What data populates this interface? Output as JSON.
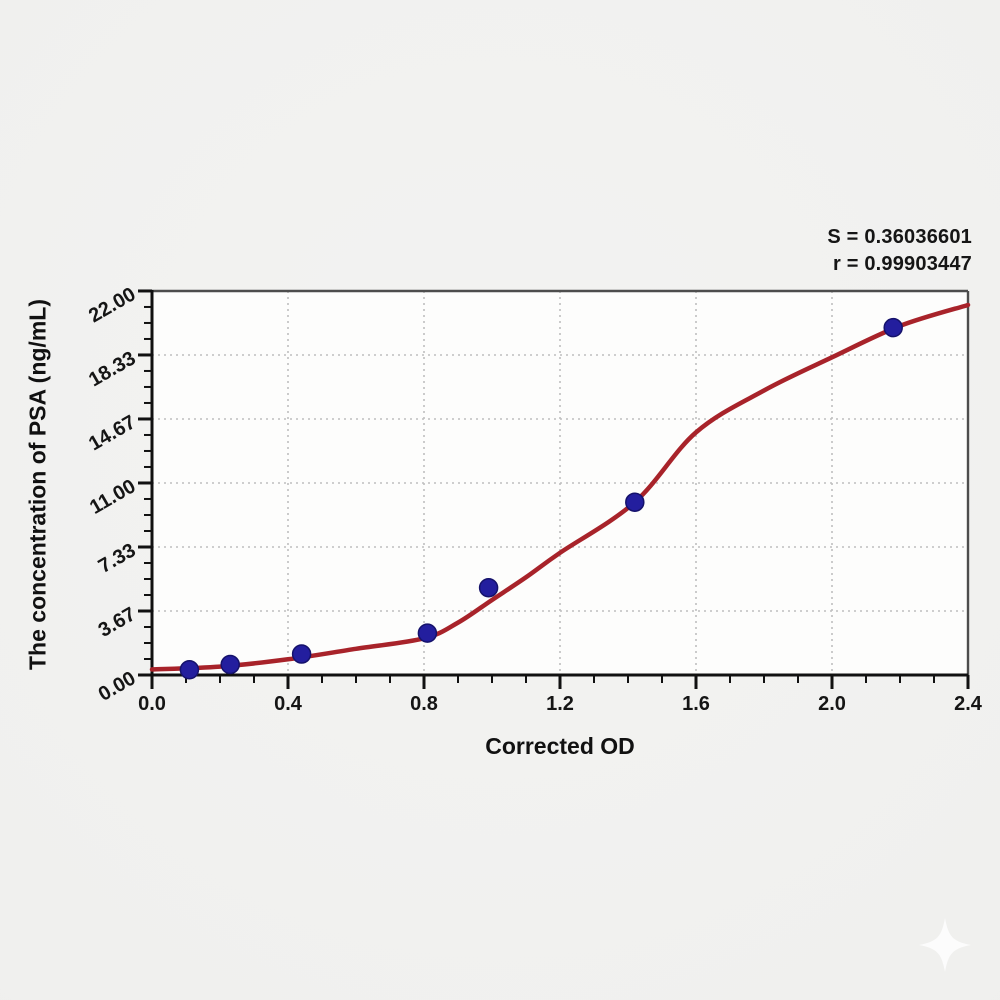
{
  "annotation": {
    "s_line": "S = 0.36036601",
    "r_line": "r = 0.99903447"
  },
  "chart_data": {
    "type": "scatter",
    "title": "",
    "xlabel": "Corrected OD",
    "ylabel": "The concentration of PSA (ng/mL)",
    "xlim": [
      0,
      2.4
    ],
    "ylim": [
      0,
      22
    ],
    "x_ticks": {
      "values": [
        0,
        0.4,
        0.8,
        1.2,
        1.6,
        2.0,
        2.4
      ],
      "labels": [
        "0.0",
        "0.4",
        "0.8",
        "1.2",
        "1.6",
        "2.0",
        "2.4"
      ]
    },
    "y_ticks": {
      "values": [
        0,
        3.667,
        7.333,
        11,
        14.667,
        18.333,
        22
      ],
      "labels": [
        "0.00",
        "3.67",
        "7.33",
        "11.00",
        "14.67",
        "18.33",
        "22.00"
      ]
    },
    "minor_ticks_between_majors": 3,
    "grid": "dotted major gridlines, on",
    "legend": "none",
    "points": [
      {
        "x": 0.11,
        "y": 0.3
      },
      {
        "x": 0.23,
        "y": 0.6
      },
      {
        "x": 0.44,
        "y": 1.2
      },
      {
        "x": 0.81,
        "y": 2.4
      },
      {
        "x": 0.99,
        "y": 5.0
      },
      {
        "x": 1.42,
        "y": 9.9
      },
      {
        "x": 2.18,
        "y": 19.9
      }
    ],
    "fit_curve": {
      "description": "sigmoid standard-curve fit",
      "samples": [
        [
          0.0,
          0.32
        ],
        [
          0.2,
          0.48
        ],
        [
          0.4,
          0.9
        ],
        [
          0.6,
          1.5
        ],
        [
          0.8,
          2.1
        ],
        [
          0.9,
          3.0
        ],
        [
          1.0,
          4.3
        ],
        [
          1.1,
          5.6
        ],
        [
          1.2,
          7.0
        ],
        [
          1.42,
          9.9
        ],
        [
          1.6,
          13.9
        ],
        [
          1.8,
          16.3
        ],
        [
          2.0,
          18.2
        ],
        [
          2.2,
          20.0
        ],
        [
          2.4,
          21.2
        ]
      ]
    },
    "stats": {
      "S": 0.36036601,
      "r": 0.99903447
    },
    "colors": {
      "curve": "#a8232a",
      "points": "#231e9e",
      "point_edge": "#15126b",
      "axis": "#111111",
      "frame": "#4d4d4d",
      "grid": "#bfbfbf",
      "plot_bg": "#fdfdfc",
      "text": "#151515"
    }
  },
  "watermark": {
    "icon": "sparkle-icon"
  }
}
